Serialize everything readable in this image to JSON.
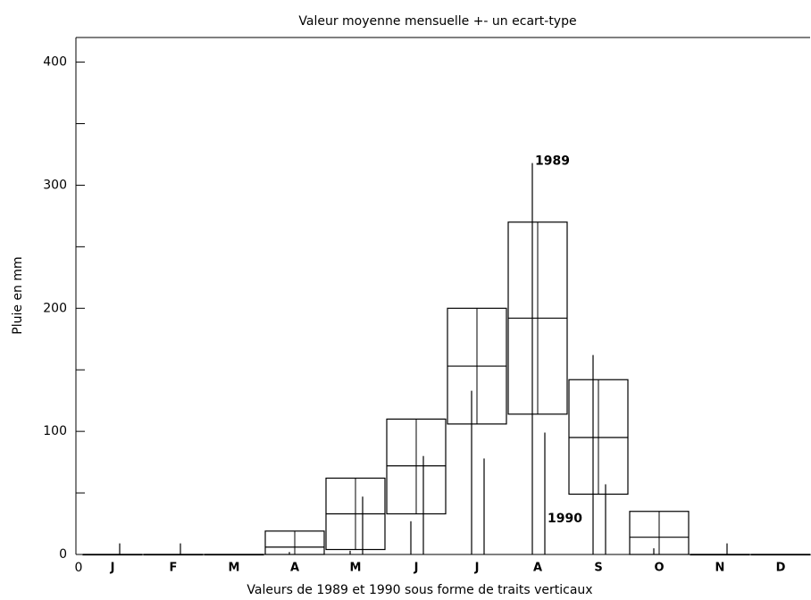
{
  "chart_data": {
    "type": "range",
    "title": "Valeur moyenne mensuelle +- un ecart-type",
    "x_label": "Valeurs de 1989 et 1990 sous forme de traits verticaux",
    "y_label": "Pluie en mm",
    "x_origin_label": "0",
    "categories": [
      "J",
      "F",
      "M",
      "A",
      "M",
      "J",
      "J",
      "A",
      "S",
      "O",
      "N",
      "D"
    ],
    "low": [
      0,
      0,
      0,
      0,
      4,
      33,
      106,
      114,
      49,
      0,
      0,
      0
    ],
    "mean": [
      0,
      0,
      0,
      6,
      33,
      72,
      153,
      192,
      95,
      14,
      0,
      0
    ],
    "high": [
      0,
      0,
      0,
      19,
      62,
      110,
      200,
      270,
      142,
      35,
      0,
      0
    ],
    "color": "#000000",
    "series": [
      {
        "name": "1989",
        "color": "#000000",
        "values": [
          0,
          0,
          0,
          2,
          3,
          27,
          133,
          318,
          162,
          5,
          0,
          0
        ]
      },
      {
        "name": "1990",
        "color": "#000000",
        "values": [
          9,
          9,
          0,
          0,
          47,
          80,
          78,
          99,
          57,
          0,
          9,
          0
        ]
      }
    ],
    "ylim": [
      0,
      420
    ],
    "yticks": [
      0,
      100,
      200,
      300,
      400
    ],
    "yticks_minor": [
      50,
      150,
      250,
      350
    ]
  }
}
